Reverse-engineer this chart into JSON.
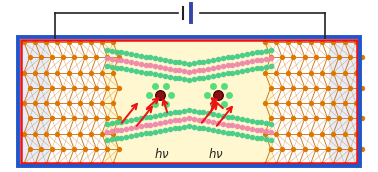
{
  "fig_width": 3.78,
  "fig_height": 1.72,
  "dpi": 100,
  "bg_color": "#ffffff",
  "blue_border": "#2255cc",
  "red_border": "#ee1111",
  "yellow_bg": "#fef7d0",
  "orange_dark": "#cc5500",
  "orange_atom": "#dd7700",
  "orange_line": "#cc6600",
  "green_atom": "#44cc88",
  "pink_atom": "#ee88aa",
  "darkred_atom": "#8b1010",
  "red_arrow": "#ee1111",
  "circuit_color": "#222222",
  "hnu_color": "#222222",
  "light_blue_panel": "#c8d8f0",
  "battery_bar1_color": "#222222",
  "battery_bar2_color": "#3344aa"
}
